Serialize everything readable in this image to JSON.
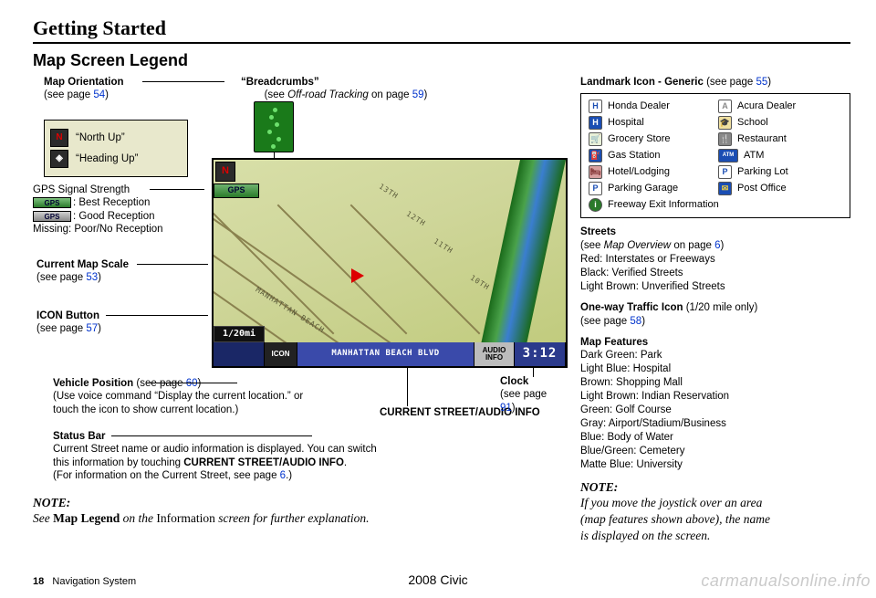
{
  "header": {
    "title": "Getting Started",
    "subtitle": "Map Screen Legend"
  },
  "footer": {
    "page_num": "18",
    "page_label": "Navigation System",
    "vehicle": "2008  Civic",
    "watermark": "carmanualsonline.info"
  },
  "map_orientation": {
    "title": "Map Orientation",
    "see": "(see page ",
    "page": "54",
    "close": ")",
    "north_up": "“North Up”",
    "heading_up": "“Heading Up”"
  },
  "breadcrumbs": {
    "title": "“Breadcrumbs”",
    "see_pre": "(see ",
    "see_ital": "Off-road Tracking",
    "see_post": " on page ",
    "page": "59",
    "close": ")"
  },
  "gps": {
    "title": "GPS Signal Strength",
    "best": ": Best Reception",
    "good": ": Good Reception",
    "missing": "Missing: Poor/No Reception",
    "badge": "GPS"
  },
  "scale": {
    "title": "Current Map Scale",
    "see": "(see page ",
    "page": "53",
    "close": ")"
  },
  "iconbtn": {
    "title": "ICON Button",
    "see": "(see page ",
    "page": "57",
    "close": ")"
  },
  "vehicle_pos": {
    "title": "Vehicle Position",
    "see": " (see page ",
    "page": "60",
    "close": ")",
    "line1": "(Use voice command “Display the current location.” or",
    "line2": "touch the icon to show current location.)"
  },
  "status_bar": {
    "title": "Status Bar",
    "line1": "Current Street name or audio information is displayed. You can switch",
    "line2_pre": "this information by touching ",
    "line2_bold": "CURRENT STREET/AUDIO INFO",
    "line2_post": ".",
    "line3_pre": "(For information on the Current Street, see page ",
    "line3_page": "6",
    "line3_post": ".)"
  },
  "current_street_label": "CURRENT STREET/AUDIO INFO",
  "clock": {
    "title": "Clock",
    "see": "(see page ",
    "page": "91",
    "close": ")"
  },
  "note_left": {
    "nh": "NOTE:",
    "pre": "See ",
    "bold": "Map Legend",
    "mid": " on the ",
    "roman": "Information",
    "post": " screen for further explanation."
  },
  "landmark": {
    "title": "Landmark Icon - Generic",
    "see": " (see page ",
    "page": "55",
    "close": ")",
    "items_left": [
      {
        "glyph": "H",
        "bg": "#ffffff",
        "fg": "#1a4db3",
        "label": "Honda Dealer"
      },
      {
        "glyph": "H",
        "bg": "#1a4db3",
        "fg": "#ffffff",
        "label": "Hospital"
      },
      {
        "glyph": "🛒",
        "bg": "#e8f0d8",
        "fg": "#2a6a2a",
        "label": "Grocery Store"
      },
      {
        "glyph": "⛽",
        "bg": "#1a4db3",
        "fg": "#ffffff",
        "label": "Gas Station"
      },
      {
        "glyph": "🛏",
        "bg": "#d8a0a0",
        "fg": "#7a2a2a",
        "label": "Hotel/Lodging"
      },
      {
        "glyph": "P",
        "bg": "#ffffff",
        "fg": "#1a4db3",
        "label": "Parking Garage"
      }
    ],
    "items_right": [
      {
        "glyph": "A",
        "bg": "#ffffff",
        "fg": "#888",
        "label": "Acura Dealer"
      },
      {
        "glyph": "🎓",
        "bg": "#f0e0a0",
        "fg": "#7a5a00",
        "label": "School"
      },
      {
        "glyph": "🍴",
        "bg": "#888",
        "fg": "#fff",
        "label": "Restaurant"
      },
      {
        "glyph": "ATM",
        "bg": "#1a4db3",
        "fg": "#fff",
        "label": "ATM"
      },
      {
        "glyph": "P",
        "bg": "#ffffff",
        "fg": "#1a4db3",
        "label": "Parking Lot"
      },
      {
        "glyph": "✉",
        "bg": "#1a4db3",
        "fg": "#f0d040",
        "label": "Post Office"
      }
    ],
    "freeway": {
      "glyph": "i",
      "bg": "#2a7a2a",
      "fg": "#fff",
      "label": "Freeway Exit Information"
    }
  },
  "streets": {
    "title": "Streets",
    "see_pre": "(see ",
    "see_ital": "Map Overview",
    "see_post": " on page ",
    "page": "6",
    "close": ")",
    "l1": "Red: Interstates or Freeways",
    "l2": "Black: Verified Streets",
    "l3": "Light Brown: Unverified Streets"
  },
  "oneway": {
    "title": "One-way Traffic Icon",
    "extra": " (1/20 mile only)",
    "see": "(see page ",
    "page": "58",
    "close": ")"
  },
  "features": {
    "title": "Map Features",
    "lines": [
      "Dark Green: Park",
      "Light Blue: Hospital",
      "Brown: Shopping Mall",
      "Light Brown: Indian Reservation",
      "Green: Golf Course",
      "Gray: Airport/Stadium/Business",
      "Blue: Body of Water",
      "Blue/Green: Cemetery",
      "Matte Blue: University"
    ]
  },
  "note_right": {
    "nh": "NOTE:",
    "l1": "If you move the joystick over an area",
    "l2": "(map features shown above), the name",
    "l3": "is displayed on the screen."
  },
  "map": {
    "compass": "N",
    "gps_badge": "GPS",
    "scale_text": "1/20mi",
    "icon_btn": "ICON",
    "street": "MANHATTAN BEACH BLVD",
    "audio": "AUDIO INFO",
    "clock": "3:12",
    "beach_label": "MANHATTAN BEACH",
    "r13": "13TH",
    "r12": "12TH",
    "r11": "11TH",
    "r10": "10TH"
  }
}
